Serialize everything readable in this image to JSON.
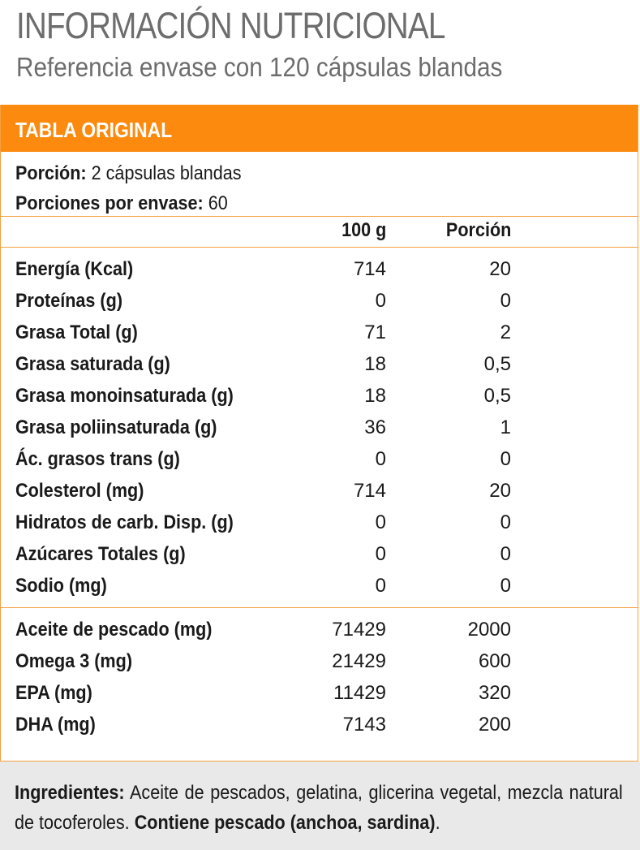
{
  "header": {
    "title": "INFORMACIÓN NUTRICIONAL",
    "subtitle": "Referencia envase con 120 cápsulas blandas"
  },
  "table": {
    "band_label": "TABLA ORIGINAL",
    "serving_label": "Porción:",
    "serving_value": "2 cápsulas blandas",
    "servings_label": "Porciones por envase:",
    "servings_value": "60",
    "col_100g": "100 g",
    "col_portion": "Porción",
    "nutrients": [
      {
        "name": "Energía (Kcal)",
        "per100": "714",
        "portion": "20"
      },
      {
        "name": "Proteínas (g)",
        "per100": "0",
        "portion": "0"
      },
      {
        "name": "Grasa Total (g)",
        "per100": "71",
        "portion": "2"
      },
      {
        "name": "Grasa saturada (g)",
        "per100": "18",
        "portion": "0,5"
      },
      {
        "name": "Grasa monoinsaturada (g)",
        "per100": "18",
        "portion": "0,5"
      },
      {
        "name": "Grasa poliinsaturada (g)",
        "per100": "36",
        "portion": "1"
      },
      {
        "name": "Ác. grasos trans (g)",
        "per100": "0",
        "portion": "0"
      },
      {
        "name": "Colesterol (mg)",
        "per100": "714",
        "portion": "20"
      },
      {
        "name": "Hidratos de carb. Disp. (g)",
        "per100": "0",
        "portion": "0"
      },
      {
        "name": "Azúcares Totales (g)",
        "per100": "0",
        "portion": "0"
      },
      {
        "name": "Sodio (mg)",
        "per100": "0",
        "portion": "0"
      }
    ],
    "extras": [
      {
        "name": "Aceite de pescado (mg)",
        "per100": "71429",
        "portion": "2000"
      },
      {
        "name": "Omega 3 (mg)",
        "per100": "21429",
        "portion": "600"
      },
      {
        "name": "EPA (mg)",
        "per100": "11429",
        "portion": "320"
      },
      {
        "name": "DHA (mg)",
        "per100": "7143",
        "portion": "200"
      }
    ]
  },
  "ingredients": {
    "label": "Ingredientes:",
    "text": "Aceite de pescados, gelatina, glicerina vegetal, mezcla natural de tocoferoles.",
    "allergen": "Contiene pescado (anchoa, sardina)",
    "end": "."
  },
  "colors": {
    "accent": "#fb8a0e",
    "border": "#f5a040",
    "title_gray": "#6d6d6d",
    "footer_bg": "#e9e9e9"
  }
}
